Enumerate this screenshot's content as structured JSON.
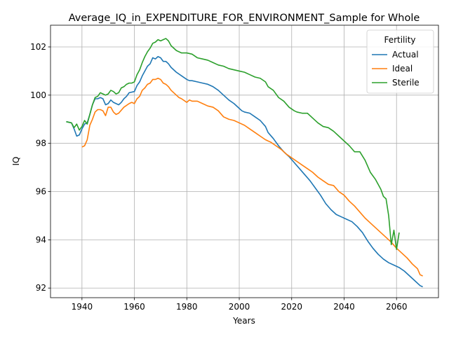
{
  "chart_data": {
    "type": "line",
    "title": "Average_IQ_in_EXPENDITURE_FOR_ENVIRONMENT_Sample for Whole",
    "xlabel": "Years",
    "ylabel": "IQ",
    "xlim": [
      1928,
      2076
    ],
    "ylim": [
      91.6,
      102.9
    ],
    "xticks": [
      1940,
      1960,
      1980,
      2000,
      2020,
      2040,
      2060
    ],
    "yticks": [
      92,
      94,
      96,
      98,
      100,
      102
    ],
    "grid": true,
    "legend": {
      "title": "Fertility",
      "placement": "top-right"
    },
    "series": [
      {
        "name": "Actual",
        "color": "#1f77b4",
        "points": [
          [
            1934,
            98.9
          ],
          [
            1936,
            98.85
          ],
          [
            1937,
            98.6
          ],
          [
            1938,
            98.3
          ],
          [
            1939,
            98.35
          ],
          [
            1940,
            98.6
          ],
          [
            1941,
            98.8
          ],
          [
            1942,
            98.85
          ],
          [
            1943,
            99.2
          ],
          [
            1944,
            99.6
          ],
          [
            1945,
            99.85
          ],
          [
            1946,
            99.85
          ],
          [
            1947,
            99.9
          ],
          [
            1948,
            99.85
          ],
          [
            1949,
            99.6
          ],
          [
            1950,
            99.65
          ],
          [
            1951,
            99.8
          ],
          [
            1952,
            99.7
          ],
          [
            1953,
            99.65
          ],
          [
            1954,
            99.6
          ],
          [
            1955,
            99.7
          ],
          [
            1956,
            99.85
          ],
          [
            1957,
            99.95
          ],
          [
            1958,
            100.1
          ],
          [
            1960,
            100.15
          ],
          [
            1961,
            100.4
          ],
          [
            1962,
            100.55
          ],
          [
            1963,
            100.8
          ],
          [
            1964,
            101.0
          ],
          [
            1965,
            101.2
          ],
          [
            1966,
            101.3
          ],
          [
            1967,
            101.55
          ],
          [
            1968,
            101.5
          ],
          [
            1969,
            101.6
          ],
          [
            1970,
            101.55
          ],
          [
            1971,
            101.4
          ],
          [
            1972,
            101.4
          ],
          [
            1973,
            101.3
          ],
          [
            1974,
            101.15
          ],
          [
            1976,
            100.95
          ],
          [
            1978,
            100.8
          ],
          [
            1980,
            100.65
          ],
          [
            1981,
            100.6
          ],
          [
            1982,
            100.6
          ],
          [
            1984,
            100.55
          ],
          [
            1986,
            100.5
          ],
          [
            1988,
            100.45
          ],
          [
            1990,
            100.35
          ],
          [
            1992,
            100.2
          ],
          [
            1994,
            100.0
          ],
          [
            1996,
            99.8
          ],
          [
            1998,
            99.65
          ],
          [
            2000,
            99.45
          ],
          [
            2001,
            99.35
          ],
          [
            2002,
            99.3
          ],
          [
            2004,
            99.25
          ],
          [
            2006,
            99.1
          ],
          [
            2008,
            98.95
          ],
          [
            2010,
            98.7
          ],
          [
            2011,
            98.45
          ],
          [
            2013,
            98.2
          ],
          [
            2015,
            97.9
          ],
          [
            2017,
            97.65
          ],
          [
            2019,
            97.45
          ],
          [
            2021,
            97.2
          ],
          [
            2023,
            96.95
          ],
          [
            2025,
            96.7
          ],
          [
            2027,
            96.45
          ],
          [
            2029,
            96.15
          ],
          [
            2031,
            95.85
          ],
          [
            2033,
            95.5
          ],
          [
            2035,
            95.25
          ],
          [
            2037,
            95.05
          ],
          [
            2039,
            94.95
          ],
          [
            2041,
            94.85
          ],
          [
            2043,
            94.75
          ],
          [
            2045,
            94.55
          ],
          [
            2047,
            94.3
          ],
          [
            2049,
            93.95
          ],
          [
            2051,
            93.65
          ],
          [
            2053,
            93.4
          ],
          [
            2055,
            93.2
          ],
          [
            2057,
            93.05
          ],
          [
            2059,
            92.95
          ],
          [
            2061,
            92.85
          ],
          [
            2063,
            92.7
          ],
          [
            2065,
            92.5
          ],
          [
            2067,
            92.3
          ],
          [
            2069,
            92.1
          ],
          [
            2070,
            92.05
          ]
        ]
      },
      {
        "name": "Ideal",
        "color": "#ff7f0e",
        "points": [
          [
            1940,
            97.85
          ],
          [
            1941,
            97.9
          ],
          [
            1942,
            98.15
          ],
          [
            1943,
            98.75
          ],
          [
            1944,
            99.0
          ],
          [
            1945,
            99.3
          ],
          [
            1946,
            99.4
          ],
          [
            1947,
            99.4
          ],
          [
            1948,
            99.35
          ],
          [
            1949,
            99.15
          ],
          [
            1950,
            99.5
          ],
          [
            1951,
            99.5
          ],
          [
            1952,
            99.3
          ],
          [
            1953,
            99.2
          ],
          [
            1954,
            99.25
          ],
          [
            1956,
            99.5
          ],
          [
            1958,
            99.65
          ],
          [
            1959,
            99.7
          ],
          [
            1960,
            99.65
          ],
          [
            1961,
            99.85
          ],
          [
            1962,
            99.95
          ],
          [
            1963,
            100.2
          ],
          [
            1964,
            100.3
          ],
          [
            1965,
            100.45
          ],
          [
            1966,
            100.5
          ],
          [
            1967,
            100.65
          ],
          [
            1968,
            100.65
          ],
          [
            1969,
            100.7
          ],
          [
            1970,
            100.65
          ],
          [
            1971,
            100.5
          ],
          [
            1972,
            100.45
          ],
          [
            1973,
            100.35
          ],
          [
            1974,
            100.2
          ],
          [
            1976,
            100.0
          ],
          [
            1977,
            99.9
          ],
          [
            1978,
            99.85
          ],
          [
            1980,
            99.7
          ],
          [
            1981,
            99.8
          ],
          [
            1982,
            99.75
          ],
          [
            1984,
            99.75
          ],
          [
            1986,
            99.65
          ],
          [
            1988,
            99.55
          ],
          [
            1990,
            99.5
          ],
          [
            1992,
            99.35
          ],
          [
            1994,
            99.1
          ],
          [
            1996,
            99.0
          ],
          [
            1998,
            98.95
          ],
          [
            2000,
            98.85
          ],
          [
            2002,
            98.75
          ],
          [
            2004,
            98.6
          ],
          [
            2006,
            98.45
          ],
          [
            2008,
            98.3
          ],
          [
            2010,
            98.15
          ],
          [
            2012,
            98.05
          ],
          [
            2014,
            97.9
          ],
          [
            2016,
            97.75
          ],
          [
            2018,
            97.55
          ],
          [
            2020,
            97.4
          ],
          [
            2022,
            97.25
          ],
          [
            2024,
            97.1
          ],
          [
            2026,
            96.95
          ],
          [
            2028,
            96.8
          ],
          [
            2030,
            96.6
          ],
          [
            2032,
            96.45
          ],
          [
            2034,
            96.3
          ],
          [
            2036,
            96.25
          ],
          [
            2038,
            96.0
          ],
          [
            2040,
            95.85
          ],
          [
            2042,
            95.6
          ],
          [
            2044,
            95.4
          ],
          [
            2046,
            95.15
          ],
          [
            2048,
            94.9
          ],
          [
            2050,
            94.7
          ],
          [
            2052,
            94.5
          ],
          [
            2054,
            94.3
          ],
          [
            2056,
            94.1
          ],
          [
            2058,
            93.9
          ],
          [
            2060,
            93.65
          ],
          [
            2062,
            93.45
          ],
          [
            2064,
            93.25
          ],
          [
            2066,
            93.0
          ],
          [
            2068,
            92.8
          ],
          [
            2069,
            92.55
          ],
          [
            2070,
            92.5
          ]
        ]
      },
      {
        "name": "Sterile",
        "color": "#2ca02c",
        "points": [
          [
            1934,
            98.9
          ],
          [
            1936,
            98.85
          ],
          [
            1937,
            98.65
          ],
          [
            1938,
            98.8
          ],
          [
            1939,
            98.55
          ],
          [
            1940,
            98.7
          ],
          [
            1941,
            98.95
          ],
          [
            1942,
            98.8
          ],
          [
            1943,
            99.2
          ],
          [
            1944,
            99.6
          ],
          [
            1945,
            99.9
          ],
          [
            1946,
            99.95
          ],
          [
            1947,
            100.1
          ],
          [
            1948,
            100.05
          ],
          [
            1949,
            100.0
          ],
          [
            1950,
            100.05
          ],
          [
            1951,
            100.2
          ],
          [
            1952,
            100.15
          ],
          [
            1953,
            100.05
          ],
          [
            1954,
            100.1
          ],
          [
            1955,
            100.3
          ],
          [
            1956,
            100.35
          ],
          [
            1957,
            100.45
          ],
          [
            1958,
            100.5
          ],
          [
            1959,
            100.5
          ],
          [
            1960,
            100.55
          ],
          [
            1961,
            100.85
          ],
          [
            1962,
            101.05
          ],
          [
            1963,
            101.35
          ],
          [
            1964,
            101.6
          ],
          [
            1965,
            101.8
          ],
          [
            1966,
            101.95
          ],
          [
            1967,
            102.15
          ],
          [
            1968,
            102.2
          ],
          [
            1969,
            102.3
          ],
          [
            1970,
            102.25
          ],
          [
            1971,
            102.3
          ],
          [
            1972,
            102.35
          ],
          [
            1973,
            102.25
          ],
          [
            1974,
            102.05
          ],
          [
            1976,
            101.85
          ],
          [
            1978,
            101.75
          ],
          [
            1980,
            101.75
          ],
          [
            1982,
            101.7
          ],
          [
            1984,
            101.55
          ],
          [
            1986,
            101.5
          ],
          [
            1988,
            101.45
          ],
          [
            1990,
            101.35
          ],
          [
            1992,
            101.25
          ],
          [
            1994,
            101.2
          ],
          [
            1996,
            101.1
          ],
          [
            1998,
            101.05
          ],
          [
            2000,
            101.0
          ],
          [
            2002,
            100.95
          ],
          [
            2004,
            100.85
          ],
          [
            2006,
            100.75
          ],
          [
            2008,
            100.7
          ],
          [
            2010,
            100.55
          ],
          [
            2011,
            100.35
          ],
          [
            2013,
            100.2
          ],
          [
            2015,
            99.9
          ],
          [
            2017,
            99.75
          ],
          [
            2019,
            99.5
          ],
          [
            2021,
            99.35
          ],
          [
            2022,
            99.3
          ],
          [
            2024,
            99.25
          ],
          [
            2026,
            99.25
          ],
          [
            2028,
            99.05
          ],
          [
            2030,
            98.85
          ],
          [
            2032,
            98.7
          ],
          [
            2034,
            98.65
          ],
          [
            2036,
            98.5
          ],
          [
            2038,
            98.3
          ],
          [
            2040,
            98.1
          ],
          [
            2042,
            97.9
          ],
          [
            2044,
            97.65
          ],
          [
            2046,
            97.65
          ],
          [
            2048,
            97.3
          ],
          [
            2050,
            96.8
          ],
          [
            2052,
            96.5
          ],
          [
            2054,
            96.1
          ],
          [
            2055,
            95.8
          ],
          [
            2056,
            95.7
          ],
          [
            2057,
            95.0
          ],
          [
            2058,
            93.8
          ],
          [
            2059,
            94.4
          ],
          [
            2060,
            93.6
          ],
          [
            2061,
            94.3
          ]
        ]
      }
    ]
  }
}
